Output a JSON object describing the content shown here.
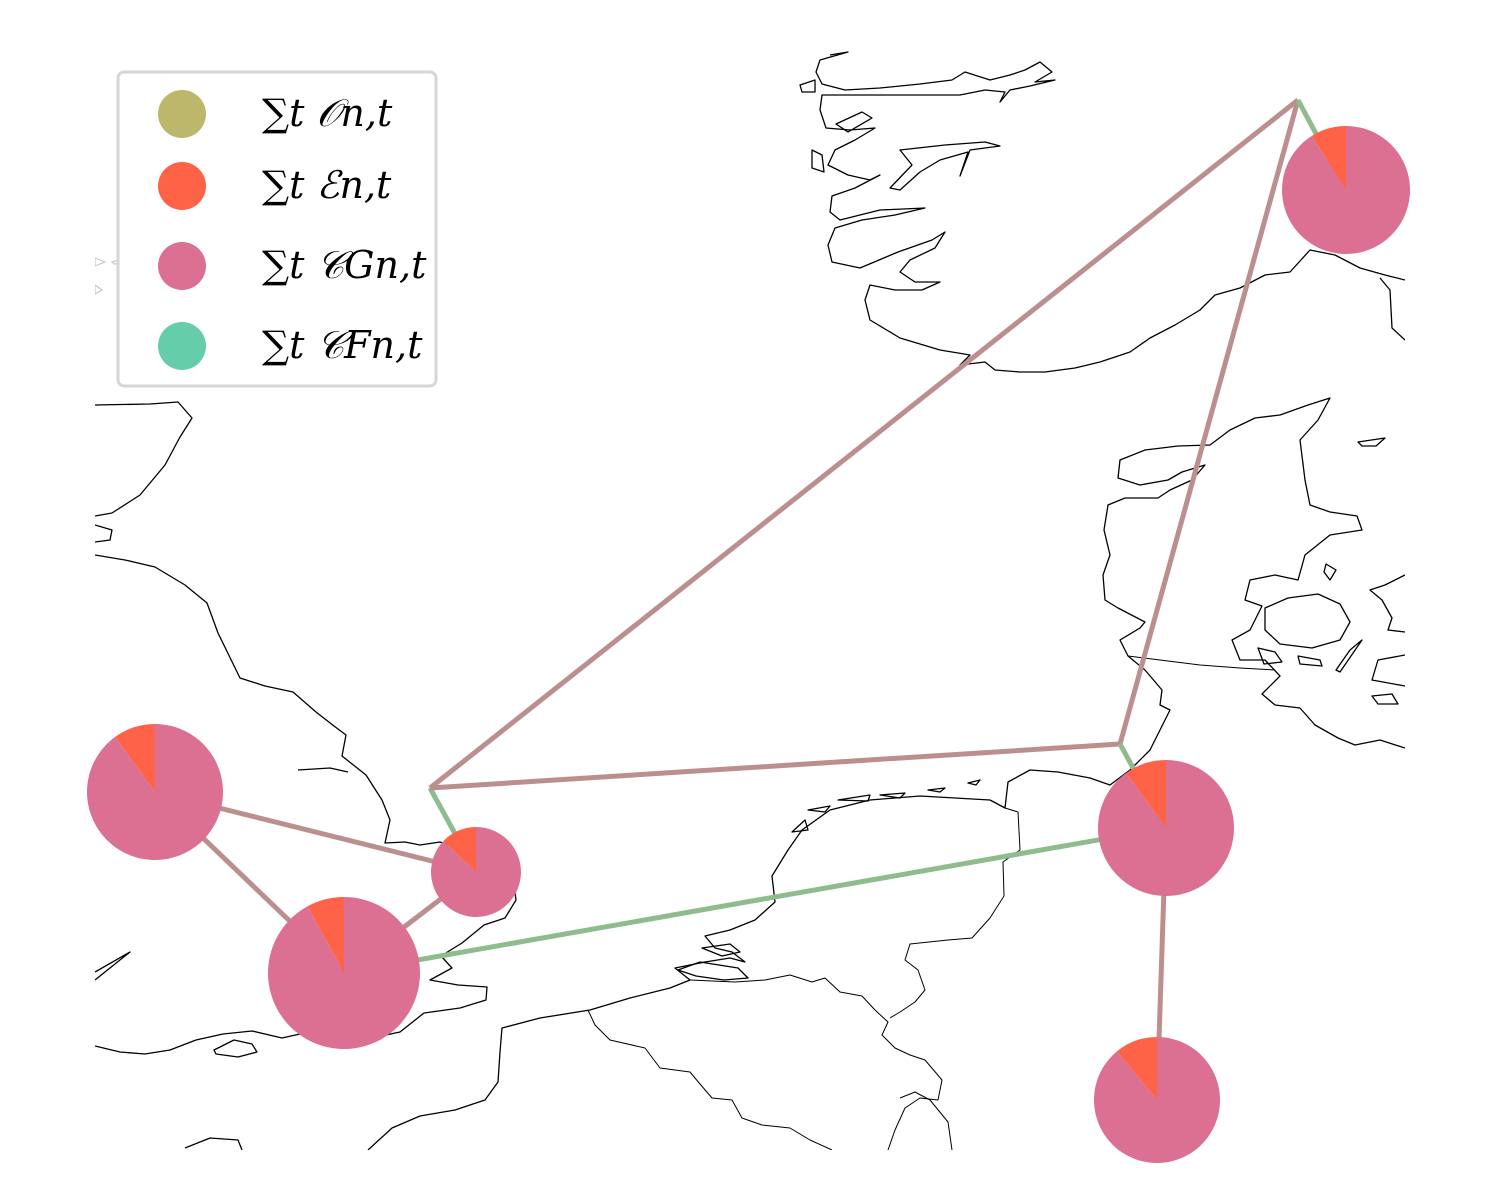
{
  "legend": {
    "items": [
      {
        "label": "∑t 𝒪n,t",
        "color": "#bdb76b"
      },
      {
        "label": "∑t ℰn,t",
        "color": "#ff6347"
      },
      {
        "label": "∑t 𝒞Gn,t",
        "color": "#db7093"
      },
      {
        "label": "∑t 𝒞Fn,t",
        "color": "#66cdaa"
      }
    ]
  },
  "colors": {
    "line_brown": "#bc8f8f",
    "line_green": "#8fbc8f",
    "pie_main": "#db7093",
    "pie_slice": "#ff6347"
  },
  "chart_data": {
    "type": "pie",
    "nodes": [
      {
        "id": "uk-north",
        "shares": [
          0.0,
          0.1,
          0.9,
          0.0
        ]
      },
      {
        "id": "uk-south",
        "shares": [
          0.0,
          0.08,
          0.92,
          0.0
        ]
      },
      {
        "id": "uk-east",
        "shares": [
          0.0,
          0.13,
          0.87,
          0.0
        ]
      },
      {
        "id": "de-north",
        "shares": [
          0.0,
          0.1,
          0.9,
          0.0
        ]
      },
      {
        "id": "de-south",
        "shares": [
          0.0,
          0.11,
          0.89,
          0.0
        ]
      },
      {
        "id": "no-south",
        "shares": [
          0.0,
          0.09,
          0.91,
          0.0
        ]
      }
    ],
    "links": [
      {
        "from": "uk-north",
        "to": "uk-south",
        "type": "brown"
      },
      {
        "from": "uk-north",
        "to": "uk-east",
        "type": "brown"
      },
      {
        "from": "uk-south",
        "to": "uk-east",
        "type": "brown"
      },
      {
        "from": "uk-south",
        "to": "de-north",
        "type": "green"
      },
      {
        "from": "uk-east",
        "to": "offshore-uk",
        "type": "green"
      },
      {
        "from": "offshore-uk",
        "to": "offshore-dk",
        "type": "brown"
      },
      {
        "from": "offshore-uk",
        "to": "offshore-no",
        "type": "brown"
      },
      {
        "from": "offshore-dk",
        "to": "offshore-no",
        "type": "brown"
      },
      {
        "from": "offshore-dk",
        "to": "de-north",
        "type": "green"
      },
      {
        "from": "offshore-no",
        "to": "no-south",
        "type": "green"
      },
      {
        "from": "de-north",
        "to": "de-south",
        "type": "brown"
      }
    ]
  }
}
